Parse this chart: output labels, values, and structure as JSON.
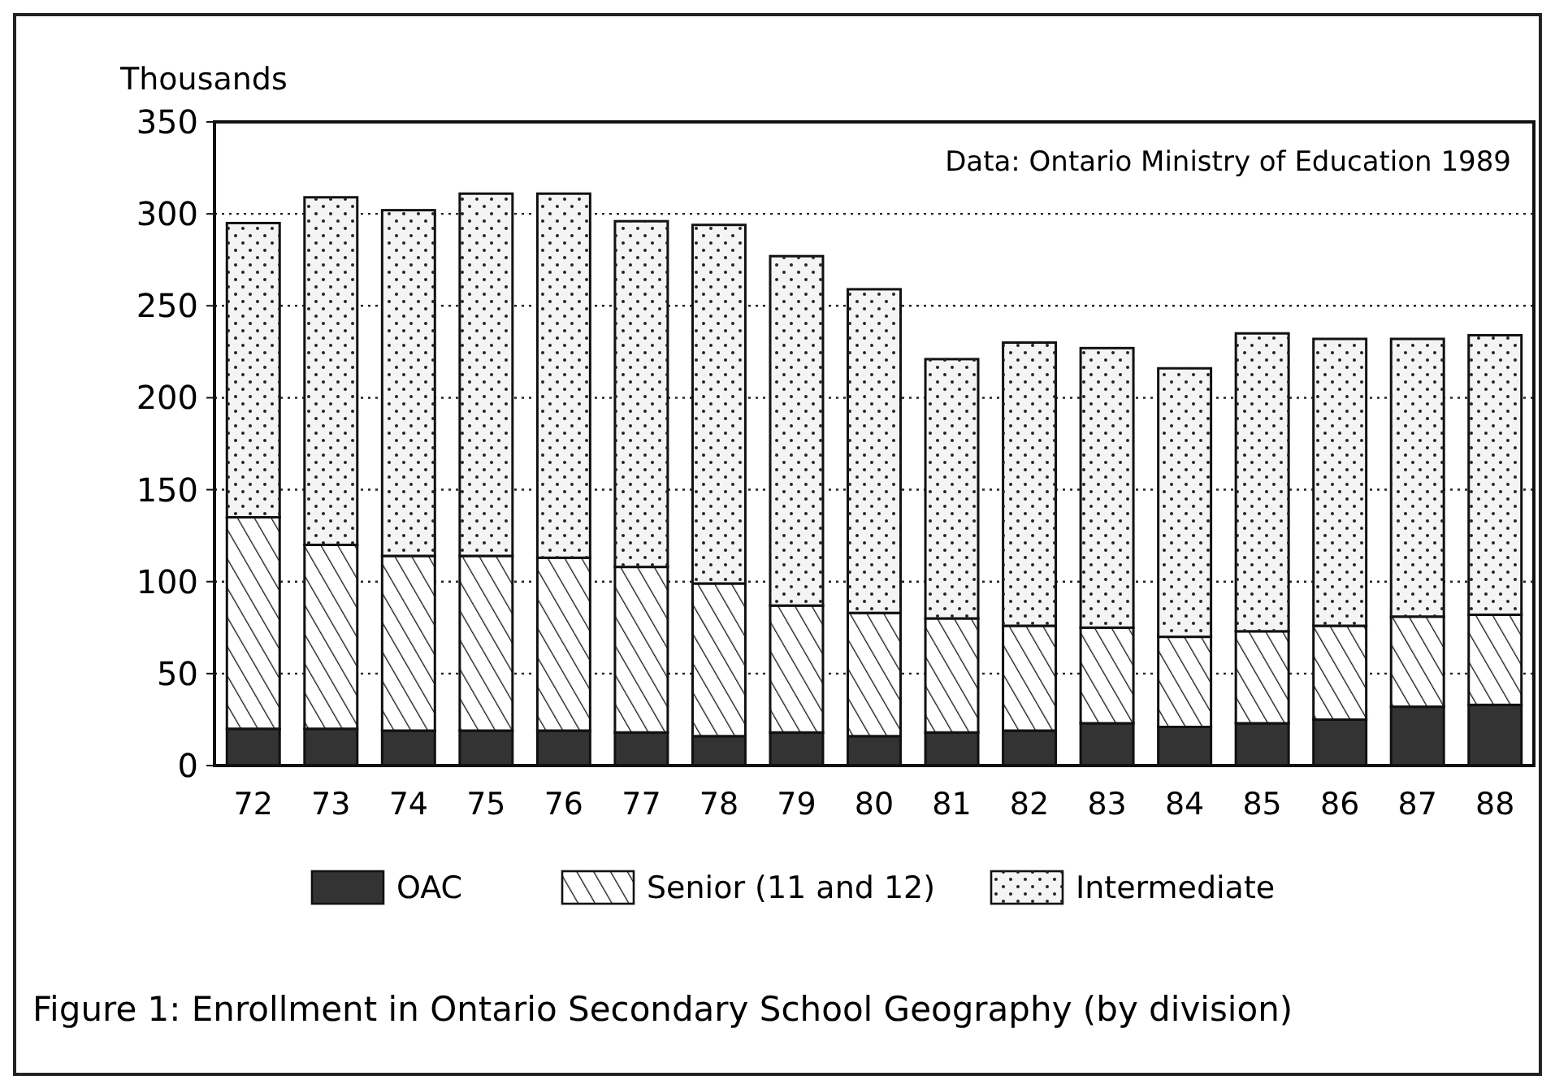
{
  "chart_data": {
    "type": "bar",
    "stacked": true,
    "title": "Figure 1:  Enrollment in Ontario Secondary School Geography (by division)",
    "ylabel": "Thousands",
    "annotations": [
      "Data: Ontario Ministry of Education 1989"
    ],
    "categories": [
      "72",
      "73",
      "74",
      "75",
      "76",
      "77",
      "78",
      "79",
      "80",
      "81",
      "82",
      "83",
      "84",
      "85",
      "86",
      "87",
      "88"
    ],
    "series": [
      {
        "name": "OAC",
        "color": "#333333",
        "values": [
          20,
          20,
          19,
          19,
          19,
          18,
          16,
          18,
          16,
          18,
          19,
          23,
          21,
          23,
          25,
          32,
          33
        ]
      },
      {
        "name": "Senior (11 and 12)",
        "color": "#ffffff",
        "values": [
          115,
          100,
          95,
          95,
          94,
          90,
          83,
          69,
          67,
          62,
          57,
          52,
          49,
          50,
          51,
          49,
          49
        ]
      },
      {
        "name": "Intermediate",
        "color": "#f4f4f4",
        "values": [
          160,
          189,
          188,
          197,
          198,
          188,
          195,
          190,
          176,
          141,
          154,
          152,
          146,
          162,
          156,
          151,
          152
        ]
      }
    ],
    "ylim": [
      0,
      350
    ],
    "yticks": [
      0,
      50,
      100,
      150,
      200,
      250,
      300,
      350
    ],
    "grid": "y",
    "legend": "bottom"
  }
}
